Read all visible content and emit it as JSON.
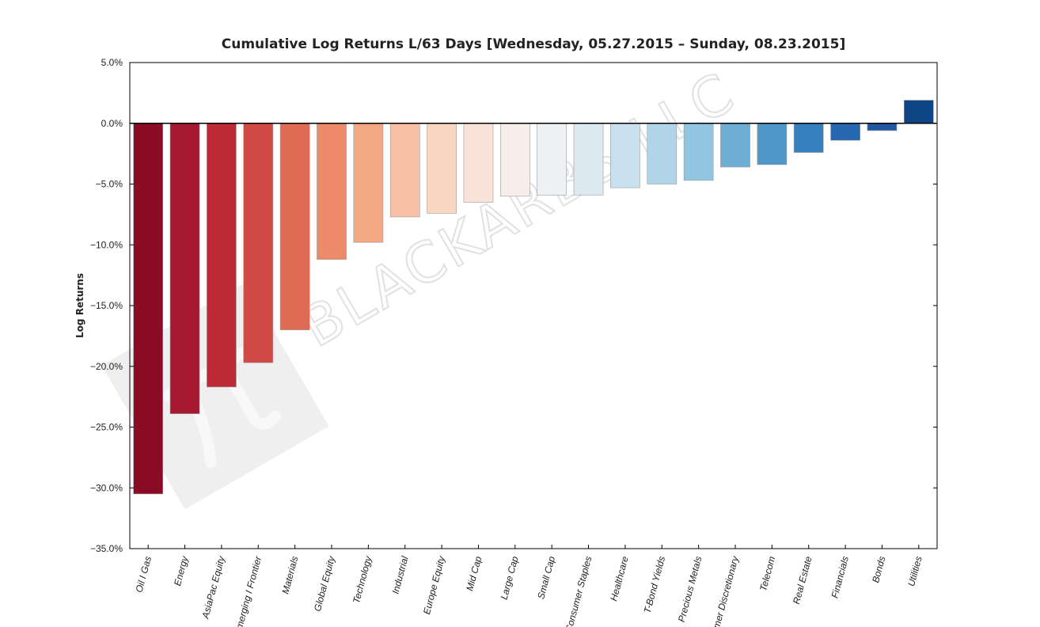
{
  "watermark": {
    "text": "BLACKARBS LLC",
    "logo": "blackarbs-pi-logo"
  },
  "chart_data": {
    "type": "bar",
    "title": "Cumulative Log Returns L/63 Days  [Wednesday, 05.27.2015 – Sunday, 08.23.2015]",
    "xlabel": "",
    "ylabel": "Log Returns",
    "ylim": [
      -35,
      5
    ],
    "yticks": [
      5,
      0,
      -5,
      -10,
      -15,
      -20,
      -25,
      -30,
      -35
    ],
    "ytick_labels": [
      "5.0%",
      "0.0%",
      "−5.0%",
      "−10.0%",
      "−15.0%",
      "−20.0%",
      "−25.0%",
      "−30.0%",
      "−35.0%"
    ],
    "grid": false,
    "categories": [
      "Oil I Gas",
      "Energy",
      "AsiaPac Equity",
      "Emerging I Frontier",
      "Materials",
      "Global Equity",
      "Technology",
      "Industrial",
      "Europe Equity",
      "Mid Cap",
      "Large Cap",
      "Small Cap",
      "Consumer Staples",
      "Healthcare",
      "T-Bond Yields",
      "Precious Metals",
      "Consumer Discretionary",
      "Telecom",
      "Real Estate",
      "Financials",
      "Bonds",
      "Utilities"
    ],
    "values": [
      -30.5,
      -23.9,
      -21.7,
      -19.7,
      -17.0,
      -11.2,
      -9.8,
      -7.7,
      -7.4,
      -6.5,
      -6.0,
      -5.9,
      -5.9,
      -5.3,
      -5.0,
      -4.7,
      -3.6,
      -3.4,
      -2.4,
      -1.4,
      -0.6,
      1.9
    ],
    "colors": [
      "#8b0a26",
      "#a61830",
      "#bd2b35",
      "#cf4a44",
      "#e06b55",
      "#ec8a69",
      "#f4a783",
      "#f8c0a6",
      "#fad6c3",
      "#f9e3d9",
      "#f7eeea",
      "#edf1f4",
      "#dde9f1",
      "#c9e0ee",
      "#b1d4e8",
      "#92c5df",
      "#6faed4",
      "#4d98c9",
      "#3580bd",
      "#2668b0",
      "#1f57a0",
      "#0d4585"
    ]
  }
}
